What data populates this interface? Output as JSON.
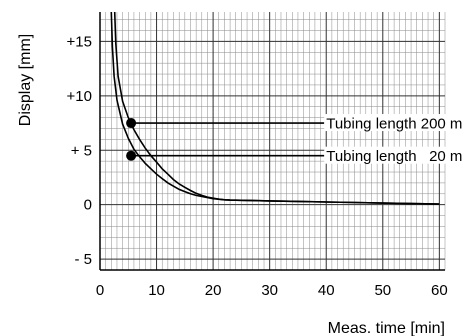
{
  "chart_data": {
    "type": "line",
    "title": "",
    "xlabel": "Meas. time [min]",
    "ylabel": "Display [mm]",
    "xlim": [
      0,
      61
    ],
    "ylim": [
      -6,
      17.7
    ],
    "x_ticks": [
      0,
      10,
      20,
      30,
      40,
      50,
      60
    ],
    "x_tick_labels": [
      "0",
      "10",
      "20",
      "30",
      "40",
      "50",
      "60"
    ],
    "y_ticks": [
      15,
      10,
      5,
      0,
      -5
    ],
    "y_tick_labels": [
      "+15",
      "+10",
      "+ 5",
      "0",
      "- 5"
    ],
    "grid": true,
    "minor_grid_step": 1,
    "legend": "none",
    "series": [
      {
        "x": [
          2.0,
          2.2,
          2.5,
          3.0,
          4.0,
          5.0,
          6.0,
          7.0,
          8.0,
          9.0,
          10.0,
          11.0,
          12.0,
          13.0,
          14.0,
          15.0,
          16.0,
          17.0,
          18.0,
          19.0,
          20.0,
          21.0,
          22.0,
          23.0,
          25.0,
          30.0,
          35.0,
          40.0,
          45.0,
          50.0,
          55.0,
          60.0
        ],
        "values": [
          17.7,
          14.5,
          11.8,
          9.6,
          7.4,
          6.1,
          5.1,
          4.4,
          3.8,
          3.3,
          2.8,
          2.4,
          2.0,
          1.7,
          1.4,
          1.2,
          1.0,
          0.85,
          0.75,
          0.65,
          0.55,
          0.5,
          0.45,
          0.42,
          0.4,
          0.35,
          0.3,
          0.25,
          0.2,
          0.15,
          0.1,
          0.05
        ]
      },
      {
        "x": [
          2.6,
          2.8,
          3.2,
          4.0,
          5.0,
          6.0,
          7.0,
          8.0,
          9.0,
          10.0,
          11.0,
          12.0,
          13.0,
          14.0,
          15.0,
          16.0,
          17.0,
          18.0,
          19.0,
          20.0,
          21.0,
          22.0,
          23.0,
          25.0,
          30.0,
          35.0,
          40.0,
          45.0,
          50.0,
          55.0,
          60.0
        ],
        "values": [
          17.7,
          14.8,
          11.8,
          9.5,
          8.0,
          6.9,
          6.0,
          5.2,
          4.5,
          3.9,
          3.3,
          2.8,
          2.3,
          1.9,
          1.6,
          1.3,
          1.05,
          0.85,
          0.7,
          0.6,
          0.5,
          0.45,
          0.42,
          0.4,
          0.35,
          0.3,
          0.25,
          0.2,
          0.15,
          0.1,
          0.05
        ]
      }
    ],
    "markers": [
      {
        "x": 5.5,
        "y": 4.5,
        "label": "Tubing length   20 m",
        "label_x": 40,
        "label_y": 4.5
      },
      {
        "x": 5.5,
        "y": 7.5,
        "label": "Tubing length 200 m",
        "label_x": 40,
        "label_y": 7.5
      }
    ]
  }
}
